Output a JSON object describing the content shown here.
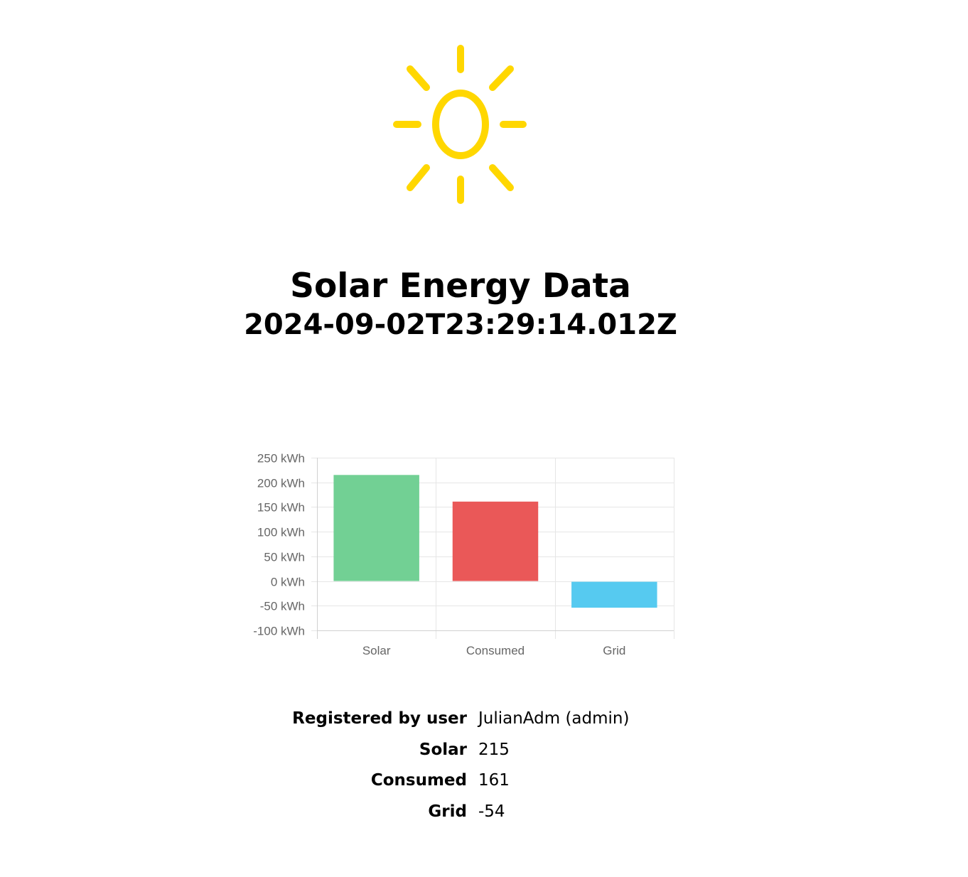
{
  "header": {
    "logo_icon": "sun-icon",
    "logo_color": "#FFD700",
    "title": "Solar Energy Data",
    "subtitle": "2024-09-02T23:29:14.012Z"
  },
  "chart_data": {
    "type": "bar",
    "categories": [
      "Solar",
      "Consumed",
      "Grid"
    ],
    "values": [
      215,
      161,
      -54
    ],
    "colors": [
      "#72D094",
      "#EA5858",
      "#56CAF0"
    ],
    "title": "",
    "xlabel": "",
    "ylabel": "",
    "ylim": [
      -100,
      250
    ],
    "yticks": [
      250,
      200,
      150,
      100,
      50,
      0,
      -50,
      -100
    ],
    "ytick_labels": [
      "250 kWh",
      "200 kWh",
      "150 kWh",
      "100 kWh",
      "50 kWh",
      "0 kWh",
      "-50 kWh",
      "-100 kWh"
    ],
    "grid": true,
    "legend": "none"
  },
  "details": {
    "rows": [
      {
        "label": "Registered by user",
        "value": "JulianAdm (admin)"
      },
      {
        "label": "Solar",
        "value": "215"
      },
      {
        "label": "Consumed",
        "value": "161"
      },
      {
        "label": "Grid",
        "value": "-54"
      }
    ]
  }
}
